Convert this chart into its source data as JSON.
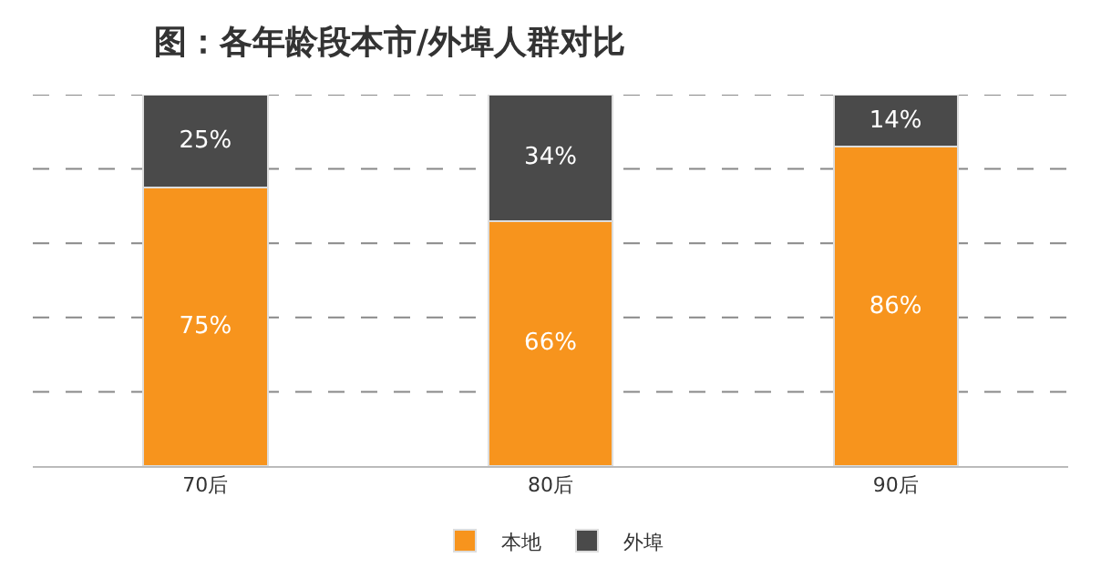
{
  "chart_data": {
    "type": "bar",
    "title": "图：各年龄段本市/外埠人群对比",
    "categories": [
      "70后",
      "80后",
      "90后"
    ],
    "stacked": true,
    "series": [
      {
        "name": "本地",
        "color": "#f7941d",
        "values": [
          75,
          66,
          86
        ],
        "value_labels": [
          "75%",
          "66%",
          "86%"
        ]
      },
      {
        "name": "外埠",
        "color": "#4a4a4a",
        "values": [
          25,
          34,
          14
        ],
        "value_labels": [
          "25%",
          "34%",
          "14%"
        ]
      }
    ],
    "ylim": [
      0,
      100
    ],
    "yticks": [
      {
        "value": 0,
        "label": null
      },
      {
        "value": 20,
        "label": null
      },
      {
        "value": 40,
        "label": null
      },
      {
        "value": 60,
        "label": null
      },
      {
        "value": 80,
        "label": null
      },
      {
        "value": 100,
        "label": null
      }
    ],
    "grid": "y",
    "legend": "bottom",
    "tick_labels": "x"
  }
}
